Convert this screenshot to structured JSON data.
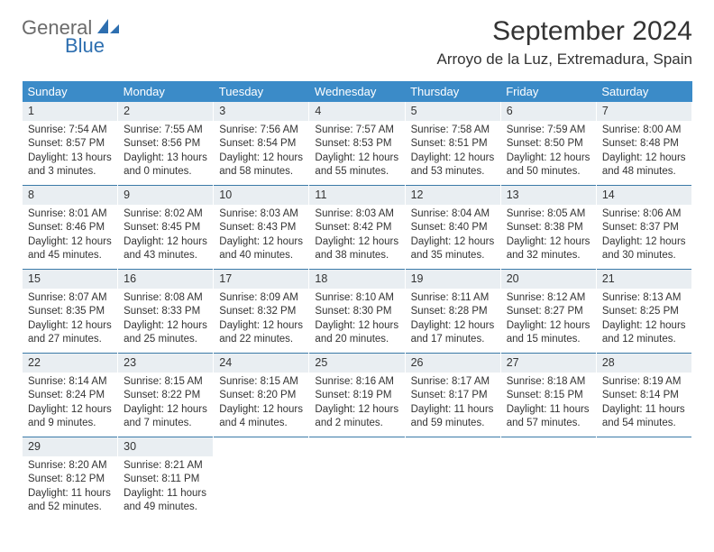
{
  "brand": {
    "g": "General",
    "b": "Blue"
  },
  "title": "September 2024",
  "location": "Arroyo de la Luz, Extremadura, Spain",
  "columns": [
    "Sunday",
    "Monday",
    "Tuesday",
    "Wednesday",
    "Thursday",
    "Friday",
    "Saturday"
  ],
  "weeks": [
    [
      {
        "n": "1",
        "sr": "Sunrise: 7:54 AM",
        "ss": "Sunset: 8:57 PM",
        "dl": "Daylight: 13 hours and 3 minutes."
      },
      {
        "n": "2",
        "sr": "Sunrise: 7:55 AM",
        "ss": "Sunset: 8:56 PM",
        "dl": "Daylight: 13 hours and 0 minutes."
      },
      {
        "n": "3",
        "sr": "Sunrise: 7:56 AM",
        "ss": "Sunset: 8:54 PM",
        "dl": "Daylight: 12 hours and 58 minutes."
      },
      {
        "n": "4",
        "sr": "Sunrise: 7:57 AM",
        "ss": "Sunset: 8:53 PM",
        "dl": "Daylight: 12 hours and 55 minutes."
      },
      {
        "n": "5",
        "sr": "Sunrise: 7:58 AM",
        "ss": "Sunset: 8:51 PM",
        "dl": "Daylight: 12 hours and 53 minutes."
      },
      {
        "n": "6",
        "sr": "Sunrise: 7:59 AM",
        "ss": "Sunset: 8:50 PM",
        "dl": "Daylight: 12 hours and 50 minutes."
      },
      {
        "n": "7",
        "sr": "Sunrise: 8:00 AM",
        "ss": "Sunset: 8:48 PM",
        "dl": "Daylight: 12 hours and 48 minutes."
      }
    ],
    [
      {
        "n": "8",
        "sr": "Sunrise: 8:01 AM",
        "ss": "Sunset: 8:46 PM",
        "dl": "Daylight: 12 hours and 45 minutes."
      },
      {
        "n": "9",
        "sr": "Sunrise: 8:02 AM",
        "ss": "Sunset: 8:45 PM",
        "dl": "Daylight: 12 hours and 43 minutes."
      },
      {
        "n": "10",
        "sr": "Sunrise: 8:03 AM",
        "ss": "Sunset: 8:43 PM",
        "dl": "Daylight: 12 hours and 40 minutes."
      },
      {
        "n": "11",
        "sr": "Sunrise: 8:03 AM",
        "ss": "Sunset: 8:42 PM",
        "dl": "Daylight: 12 hours and 38 minutes."
      },
      {
        "n": "12",
        "sr": "Sunrise: 8:04 AM",
        "ss": "Sunset: 8:40 PM",
        "dl": "Daylight: 12 hours and 35 minutes."
      },
      {
        "n": "13",
        "sr": "Sunrise: 8:05 AM",
        "ss": "Sunset: 8:38 PM",
        "dl": "Daylight: 12 hours and 32 minutes."
      },
      {
        "n": "14",
        "sr": "Sunrise: 8:06 AM",
        "ss": "Sunset: 8:37 PM",
        "dl": "Daylight: 12 hours and 30 minutes."
      }
    ],
    [
      {
        "n": "15",
        "sr": "Sunrise: 8:07 AM",
        "ss": "Sunset: 8:35 PM",
        "dl": "Daylight: 12 hours and 27 minutes."
      },
      {
        "n": "16",
        "sr": "Sunrise: 8:08 AM",
        "ss": "Sunset: 8:33 PM",
        "dl": "Daylight: 12 hours and 25 minutes."
      },
      {
        "n": "17",
        "sr": "Sunrise: 8:09 AM",
        "ss": "Sunset: 8:32 PM",
        "dl": "Daylight: 12 hours and 22 minutes."
      },
      {
        "n": "18",
        "sr": "Sunrise: 8:10 AM",
        "ss": "Sunset: 8:30 PM",
        "dl": "Daylight: 12 hours and 20 minutes."
      },
      {
        "n": "19",
        "sr": "Sunrise: 8:11 AM",
        "ss": "Sunset: 8:28 PM",
        "dl": "Daylight: 12 hours and 17 minutes."
      },
      {
        "n": "20",
        "sr": "Sunrise: 8:12 AM",
        "ss": "Sunset: 8:27 PM",
        "dl": "Daylight: 12 hours and 15 minutes."
      },
      {
        "n": "21",
        "sr": "Sunrise: 8:13 AM",
        "ss": "Sunset: 8:25 PM",
        "dl": "Daylight: 12 hours and 12 minutes."
      }
    ],
    [
      {
        "n": "22",
        "sr": "Sunrise: 8:14 AM",
        "ss": "Sunset: 8:24 PM",
        "dl": "Daylight: 12 hours and 9 minutes."
      },
      {
        "n": "23",
        "sr": "Sunrise: 8:15 AM",
        "ss": "Sunset: 8:22 PM",
        "dl": "Daylight: 12 hours and 7 minutes."
      },
      {
        "n": "24",
        "sr": "Sunrise: 8:15 AM",
        "ss": "Sunset: 8:20 PM",
        "dl": "Daylight: 12 hours and 4 minutes."
      },
      {
        "n": "25",
        "sr": "Sunrise: 8:16 AM",
        "ss": "Sunset: 8:19 PM",
        "dl": "Daylight: 12 hours and 2 minutes."
      },
      {
        "n": "26",
        "sr": "Sunrise: 8:17 AM",
        "ss": "Sunset: 8:17 PM",
        "dl": "Daylight: 11 hours and 59 minutes."
      },
      {
        "n": "27",
        "sr": "Sunrise: 8:18 AM",
        "ss": "Sunset: 8:15 PM",
        "dl": "Daylight: 11 hours and 57 minutes."
      },
      {
        "n": "28",
        "sr": "Sunrise: 8:19 AM",
        "ss": "Sunset: 8:14 PM",
        "dl": "Daylight: 11 hours and 54 minutes."
      }
    ],
    [
      {
        "n": "29",
        "sr": "Sunrise: 8:20 AM",
        "ss": "Sunset: 8:12 PM",
        "dl": "Daylight: 11 hours and 52 minutes."
      },
      {
        "n": "30",
        "sr": "Sunrise: 8:21 AM",
        "ss": "Sunset: 8:11 PM",
        "dl": "Daylight: 11 hours and 49 minutes."
      },
      null,
      null,
      null,
      null,
      null
    ]
  ],
  "colors": {
    "header_bg": "#3b8bc8",
    "header_text": "#ffffff",
    "daynum_bg": "#e9eef2",
    "cell_border": "#3b7aa8",
    "page_bg": "#ffffff",
    "text": "#333333"
  }
}
